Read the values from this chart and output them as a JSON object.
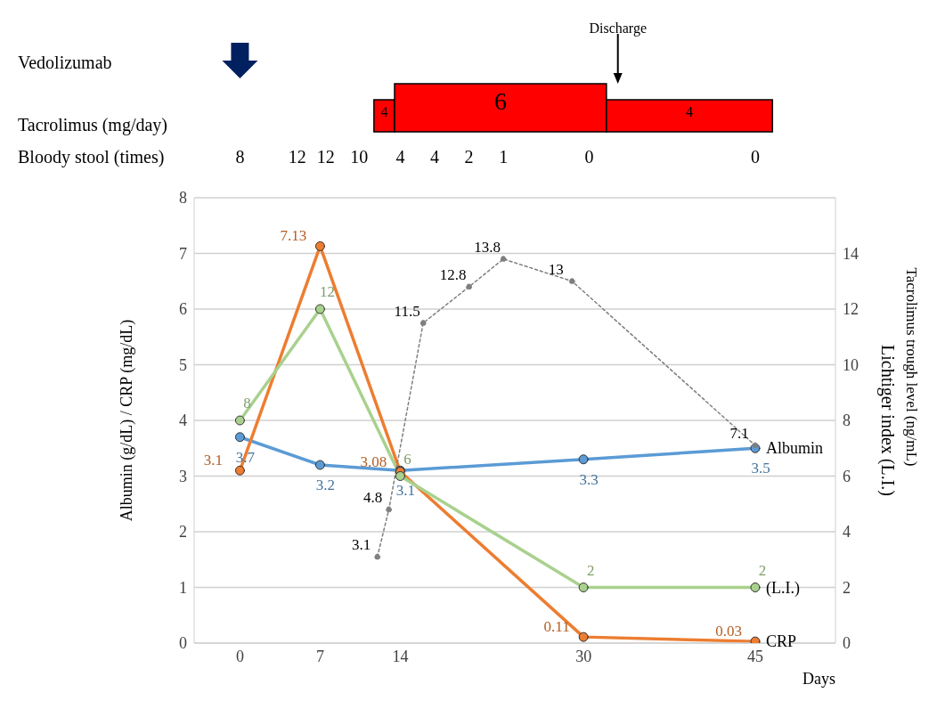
{
  "chart_data": [
    {
      "type": "other",
      "annotations": [
        "Vedolizumab",
        "Discharge",
        "Tacrolimus (mg/day)",
        "4",
        "6",
        "4",
        "Bloody stool (times)",
        "8",
        "12",
        "12",
        "10",
        "4",
        "4",
        "2",
        "1",
        "0",
        "0"
      ]
    },
    {
      "type": "line",
      "xlabel": "Days",
      "ylabel": "Albumin (g/dL) / CRP (mg/dL)",
      "y2label": "Lichtiger index (L.I.)",
      "xlim": [
        -4,
        52
      ],
      "xticks": [
        0,
        7,
        14,
        30,
        45
      ],
      "ylim": [
        0,
        8
      ],
      "yticks": [
        0,
        1,
        2,
        3,
        4,
        5,
        6,
        7,
        8
      ],
      "y2lim": [
        0,
        16
      ],
      "y2ticks": [
        0,
        2,
        4,
        6,
        8,
        10,
        12,
        14
      ],
      "grid": "y",
      "marker": "circle",
      "data_labels": true,
      "annotations": [
        "Tacrolimus trough level (ng/mL)"
      ],
      "series": [
        {
          "name": "Albumin",
          "color": "#5b9bd5",
          "x": [
            0,
            7,
            14,
            30,
            45
          ],
          "values": [
            3.7,
            3.2,
            3.1,
            3.3,
            3.5
          ]
        },
        {
          "name": "CRP",
          "color": "#ed7d31",
          "x": [
            0,
            7,
            14,
            30,
            45
          ],
          "values": [
            3.1,
            7.13,
            3.08,
            0.11,
            0.03
          ]
        },
        {
          "name": "(L.I.)",
          "color": "#a9d18e",
          "axis": "y2",
          "x": [
            0,
            7,
            14,
            30,
            45
          ],
          "values": [
            8,
            12,
            6,
            2,
            2
          ]
        },
        {
          "color": "#7f7f7f",
          "axis": "y2",
          "line_style": "dotted",
          "x": [
            12,
            13,
            16,
            20,
            23,
            29,
            45
          ],
          "values": [
            3.1,
            4.8,
            11.5,
            12.8,
            13.8,
            13.0,
            7.1
          ]
        }
      ]
    }
  ]
}
